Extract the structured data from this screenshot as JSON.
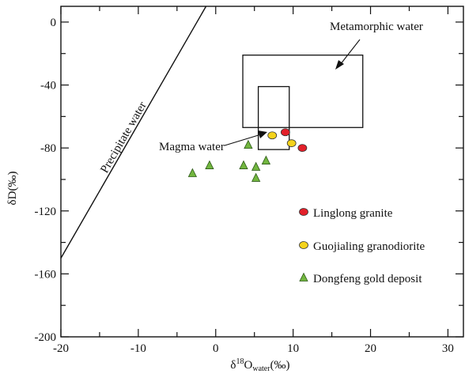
{
  "chart_data": {
    "type": "scatter",
    "xlabel": "δ18Owater(‰)",
    "xlabel_parts": {
      "base": "δ",
      "sup": "18",
      "main": "O",
      "sub": "water",
      "unit": "(‰)"
    },
    "ylabel": "δD(‰)",
    "xlim": [
      -20,
      32
    ],
    "ylim": [
      -200,
      10
    ],
    "x_ticks": [
      -20,
      -10,
      0,
      10,
      20,
      30
    ],
    "x_tick_labels": [
      "-20",
      "-10",
      "0",
      "10",
      "20",
      "30"
    ],
    "y_ticks": [
      0,
      -40,
      -80,
      -120,
      -160,
      -200
    ],
    "y_tick_labels": [
      "0",
      "-40",
      "-80",
      "-120",
      "-160",
      "-200"
    ],
    "grid": false,
    "legend_position": "bottom-right",
    "series": [
      {
        "name": "Linglong granite",
        "marker": "ellipse",
        "color": "#e3202a",
        "points": [
          [
            9.0,
            -70
          ],
          [
            11.2,
            -80
          ]
        ]
      },
      {
        "name": "Guojialing granodiorite",
        "marker": "ellipse",
        "color": "#f5d31c",
        "points": [
          [
            7.3,
            -72
          ],
          [
            9.8,
            -77
          ]
        ]
      },
      {
        "name": "Dongfeng gold deposit",
        "marker": "triangle",
        "color": "#72b63f",
        "points": [
          [
            -3.0,
            -96
          ],
          [
            -0.8,
            -91
          ],
          [
            3.6,
            -91
          ],
          [
            4.2,
            -78
          ],
          [
            5.2,
            -92
          ],
          [
            5.2,
            -99
          ],
          [
            6.5,
            -88
          ]
        ]
      }
    ],
    "regions": [
      {
        "name": "Metamorphic water",
        "x": [
          3.5,
          19
        ],
        "y": [
          -67,
          -21
        ]
      },
      {
        "name": "Magma water",
        "x": [
          5.5,
          9.5
        ],
        "y": [
          -81,
          -41
        ]
      }
    ],
    "lines": [
      {
        "name": "Precipitate water",
        "points": [
          [
            -20,
            -150
          ],
          [
            -1.25,
            10
          ]
        ]
      }
    ],
    "annotations": [
      {
        "text": "Metamorphic water",
        "target": "Metamorphic water"
      },
      {
        "text": "Magma water",
        "target": "Magma water"
      },
      {
        "text": "Precipitate water",
        "target": "Precipitate water"
      }
    ]
  }
}
